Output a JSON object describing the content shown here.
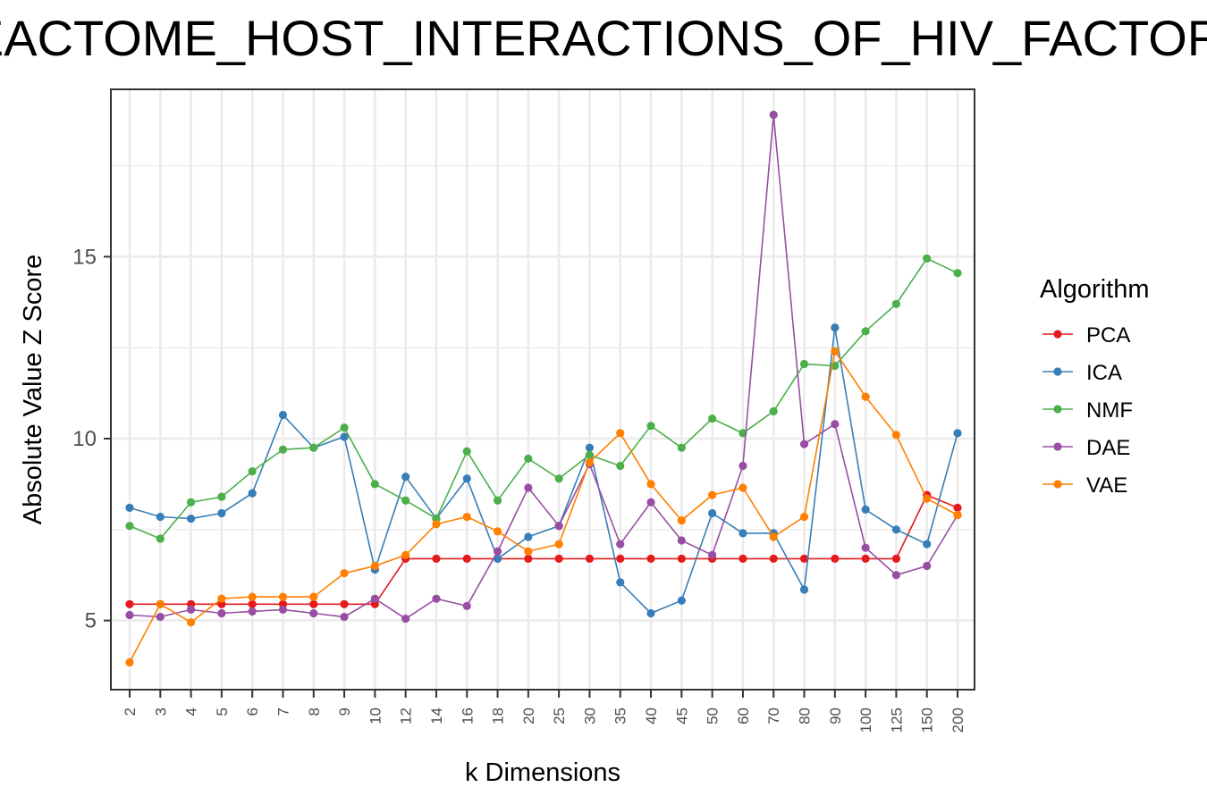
{
  "chart_data": {
    "type": "line",
    "title": "REACTOME_HOST_INTERACTIONS_OF_HIV_FACTORS",
    "xlabel": "k Dimensions",
    "ylabel": "Absolute Value Z Score",
    "categories": [
      "2",
      "3",
      "4",
      "5",
      "6",
      "7",
      "8",
      "9",
      "10",
      "12",
      "14",
      "16",
      "18",
      "20",
      "25",
      "30",
      "35",
      "40",
      "45",
      "50",
      "60",
      "70",
      "80",
      "90",
      "100",
      "125",
      "150",
      "200"
    ],
    "ylim": [
      3.1,
      19.6
    ],
    "yticks": [
      5,
      10,
      15
    ],
    "grid": true,
    "legend_title": "Algorithm",
    "legend_position": "right",
    "series": [
      {
        "name": "PCA",
        "color": "#e41a1c",
        "values": [
          5.45,
          5.45,
          5.45,
          5.45,
          5.45,
          5.45,
          5.45,
          5.45,
          5.45,
          6.7,
          6.7,
          6.7,
          6.7,
          6.7,
          6.7,
          6.7,
          6.7,
          6.7,
          6.7,
          6.7,
          6.7,
          6.7,
          6.7,
          6.7,
          6.7,
          6.7,
          8.45,
          8.1
        ]
      },
      {
        "name": "ICA",
        "color": "#377eb8",
        "values": [
          8.1,
          7.85,
          7.8,
          7.95,
          8.5,
          10.65,
          9.75,
          10.05,
          6.4,
          8.95,
          7.8,
          8.9,
          6.7,
          7.3,
          7.6,
          9.75,
          6.05,
          5.2,
          5.55,
          7.95,
          7.4,
          7.4,
          5.85,
          13.05,
          8.05,
          7.5,
          7.1,
          10.15
        ]
      },
      {
        "name": "NMF",
        "color": "#4daf4a",
        "values": [
          7.6,
          7.25,
          8.25,
          8.4,
          9.1,
          9.7,
          9.75,
          10.3,
          8.75,
          8.3,
          7.8,
          9.65,
          8.3,
          9.45,
          8.9,
          9.55,
          9.25,
          10.35,
          9.75,
          10.55,
          10.15,
          10.75,
          12.05,
          12.0,
          12.95,
          13.7,
          14.95,
          14.55
        ]
      },
      {
        "name": "DAE",
        "color": "#984ea3",
        "values": [
          5.15,
          5.1,
          5.3,
          5.2,
          5.25,
          5.3,
          5.2,
          5.1,
          5.6,
          5.05,
          5.6,
          5.4,
          6.9,
          8.65,
          7.6,
          9.3,
          7.1,
          8.25,
          7.2,
          6.8,
          9.25,
          18.9,
          9.85,
          10.4,
          7.0,
          6.25,
          6.5,
          7.9
        ]
      },
      {
        "name": "VAE",
        "color": "#ff7f00",
        "values": [
          3.85,
          5.45,
          4.95,
          5.6,
          5.65,
          5.65,
          5.65,
          6.3,
          6.5,
          6.8,
          7.65,
          7.85,
          7.45,
          6.9,
          7.1,
          9.35,
          10.15,
          8.75,
          7.75,
          8.45,
          8.65,
          7.3,
          7.85,
          12.4,
          11.15,
          10.1,
          8.35,
          7.9
        ]
      }
    ]
  }
}
